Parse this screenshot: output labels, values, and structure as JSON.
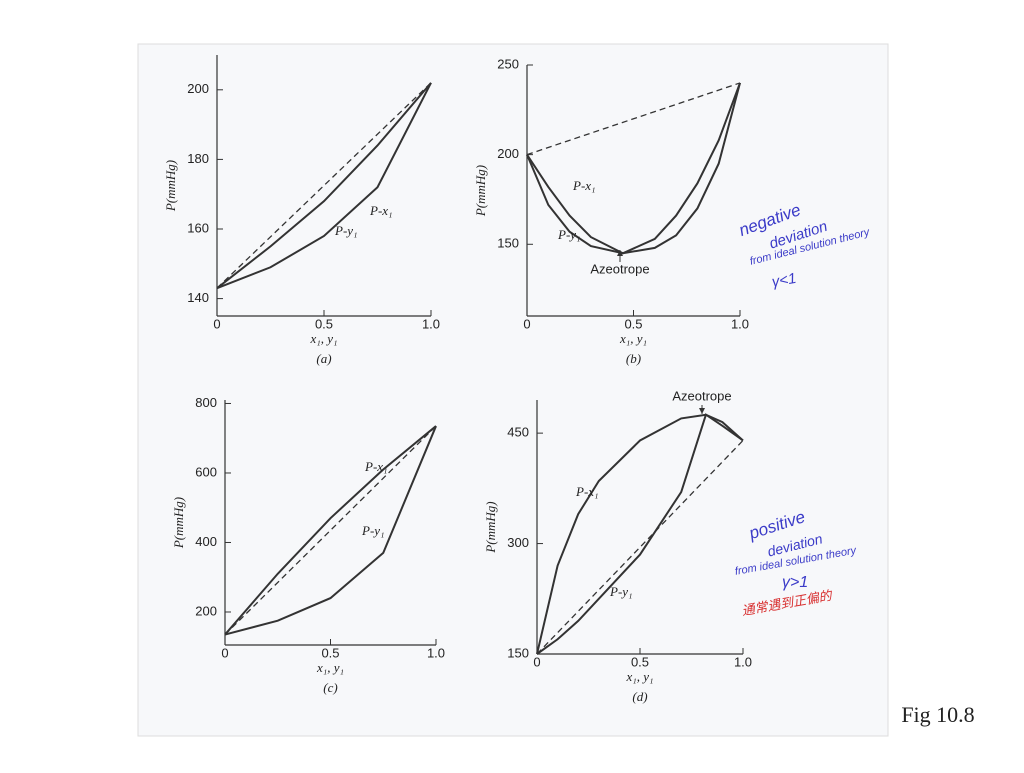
{
  "chart_data": [
    {
      "type": "line",
      "caption": "(a)",
      "xlabel": "x₁, y₁",
      "ylabel": "P(mmHg)",
      "xlim": [
        0,
        1
      ],
      "xticks": [
        0,
        0.5,
        {
          "value": 1,
          "label": "1.0"
        }
      ],
      "ylim": [
        135,
        210
      ],
      "yticks": [
        140,
        160,
        180,
        200
      ],
      "series": [
        {
          "name": "P-x₁",
          "color": "#333333",
          "x": [
            0,
            0.25,
            0.5,
            0.75,
            1
          ],
          "values": [
            143,
            155,
            168,
            184,
            202
          ]
        },
        {
          "name": "P-y₁",
          "color": "#333333",
          "x": [
            0,
            0.25,
            0.5,
            0.75,
            1
          ],
          "values": [
            143,
            149,
            158,
            172,
            202
          ]
        },
        {
          "color": "#333333",
          "dash": true,
          "x": [
            0,
            1
          ],
          "values": [
            143,
            202
          ]
        }
      ]
    },
    {
      "type": "line",
      "caption": "(b)",
      "xlabel": "x₁, y₁",
      "ylabel": "P(mmHg)",
      "xlim": [
        0,
        1
      ],
      "xticks": [
        0,
        0.5,
        {
          "value": 1,
          "label": "1.0"
        }
      ],
      "ylim": [
        110,
        250
      ],
      "yticks": [
        150,
        200,
        250
      ],
      "annotation": "Azeotrope",
      "series": [
        {
          "name": "P-x₁",
          "color": "#333333",
          "x": [
            0,
            0.1,
            0.2,
            0.3,
            0.45,
            0.6,
            0.7,
            0.8,
            0.9,
            1
          ],
          "values": [
            200,
            182,
            166,
            154,
            145,
            153,
            166,
            184,
            208,
            240
          ]
        },
        {
          "name": "P-y₁",
          "color": "#333333",
          "x": [
            0,
            0.1,
            0.2,
            0.3,
            0.45,
            0.6,
            0.7,
            0.8,
            0.9,
            1
          ],
          "values": [
            200,
            172,
            157,
            149,
            145,
            148,
            155,
            170,
            195,
            240
          ]
        },
        {
          "color": "#333333",
          "dash": true,
          "x": [
            0,
            1
          ],
          "values": [
            200,
            240
          ]
        }
      ]
    },
    {
      "type": "line",
      "caption": "(c)",
      "xlabel": "x₁, y₁",
      "ylabel": "P(mmHg)",
      "xlim": [
        0,
        1
      ],
      "xticks": [
        0,
        0.5,
        {
          "value": 1,
          "label": "1.0"
        }
      ],
      "ylim": [
        105,
        810
      ],
      "yticks": [
        200,
        400,
        600,
        800
      ],
      "series": [
        {
          "name": "P-x₁",
          "color": "#333333",
          "x": [
            0,
            0.25,
            0.5,
            0.75,
            1
          ],
          "values": [
            135,
            310,
            470,
            610,
            735
          ]
        },
        {
          "name": "P-y₁",
          "color": "#333333",
          "x": [
            0,
            0.25,
            0.5,
            0.75,
            1
          ],
          "values": [
            135,
            175,
            240,
            370,
            735
          ]
        },
        {
          "color": "#333333",
          "dash": true,
          "x": [
            0,
            1
          ],
          "values": [
            135,
            735
          ]
        }
      ]
    },
    {
      "type": "line",
      "caption": "(d)",
      "xlabel": "x₁, y₁",
      "ylabel": "P(mmHg)",
      "xlim": [
        0,
        1
      ],
      "xticks": [
        0,
        0.5,
        {
          "value": 1,
          "label": "1.0"
        }
      ],
      "ylim": [
        150,
        495
      ],
      "yticks": [
        150,
        300,
        450
      ],
      "annotation": "Azeotrope",
      "series": [
        {
          "name": "P-x₁",
          "color": "#333333",
          "x": [
            0,
            0.1,
            0.2,
            0.3,
            0.5,
            0.7,
            0.82,
            0.9,
            1
          ],
          "values": [
            150,
            270,
            340,
            385,
            440,
            470,
            475,
            465,
            440
          ]
        },
        {
          "name": "P-y₁",
          "color": "#333333",
          "x": [
            0,
            0.1,
            0.2,
            0.3,
            0.5,
            0.7,
            0.82,
            0.9,
            1
          ],
          "values": [
            150,
            170,
            195,
            225,
            285,
            370,
            475,
            460,
            440
          ]
        },
        {
          "color": "#333333",
          "dash": true,
          "x": [
            0,
            1
          ],
          "values": [
            150,
            440
          ]
        }
      ]
    }
  ],
  "notes": [
    {
      "text": "negative",
      "color": "#3b3bc8"
    },
    {
      "text": "deviation",
      "color": "#3b3bc8"
    },
    {
      "text": "from ideal solution theory",
      "color": "#3b3bc8"
    },
    {
      "text": "γ<1",
      "color": "#3b3bc8"
    },
    {
      "text": "positive",
      "color": "#3b3bc8"
    },
    {
      "text": "deviation",
      "color": "#3b3bc8"
    },
    {
      "text": "from ideal solution theory",
      "color": "#3b3bc8"
    },
    {
      "text": "γ>1",
      "color": "#3b3bc8"
    },
    {
      "text": "通常遇到正偏的",
      "color": "#d83030"
    }
  ],
  "figure_label": "Fig 10.8"
}
